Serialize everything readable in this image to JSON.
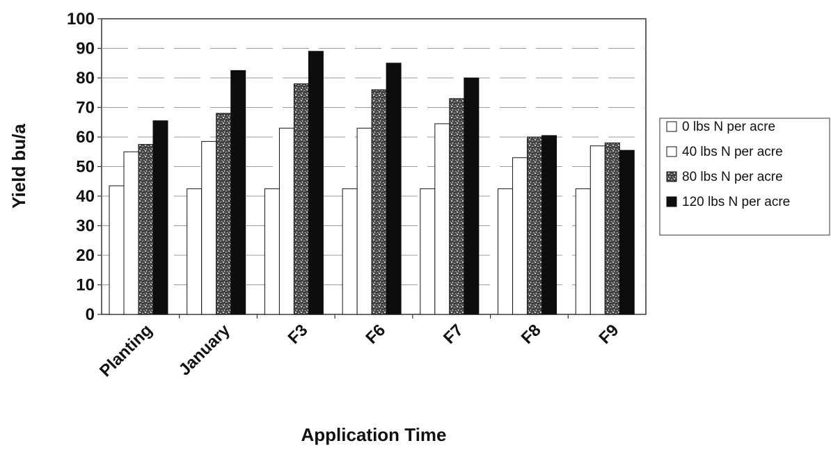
{
  "chart_data": {
    "type": "bar",
    "title": "",
    "xlabel": "Application Time",
    "ylabel": "Yield bu/a",
    "ylim": [
      0,
      100
    ],
    "yticks": [
      0,
      10,
      20,
      30,
      40,
      50,
      60,
      70,
      80,
      90,
      100
    ],
    "grid": true,
    "legend_position": "right",
    "categories": [
      "Planting",
      "January",
      "F3",
      "F6",
      "F7",
      "F8",
      "F9"
    ],
    "series": [
      {
        "name": "0 lbs N per acre",
        "fill": "white",
        "values": [
          43.5,
          42.5,
          42.5,
          42.5,
          42.5,
          42.5,
          42.5
        ]
      },
      {
        "name": "40 lbs N per acre",
        "fill": "white",
        "values": [
          55,
          58.5,
          63,
          63,
          64.5,
          53,
          57
        ]
      },
      {
        "name": "80 lbs N per acre",
        "fill": "speckled",
        "values": [
          57.5,
          68,
          78,
          76,
          73,
          60,
          58
        ]
      },
      {
        "name": "120 lbs N per acre",
        "fill": "black",
        "values": [
          65.5,
          82.5,
          89,
          85,
          80,
          60.5,
          55.5
        ]
      }
    ]
  }
}
